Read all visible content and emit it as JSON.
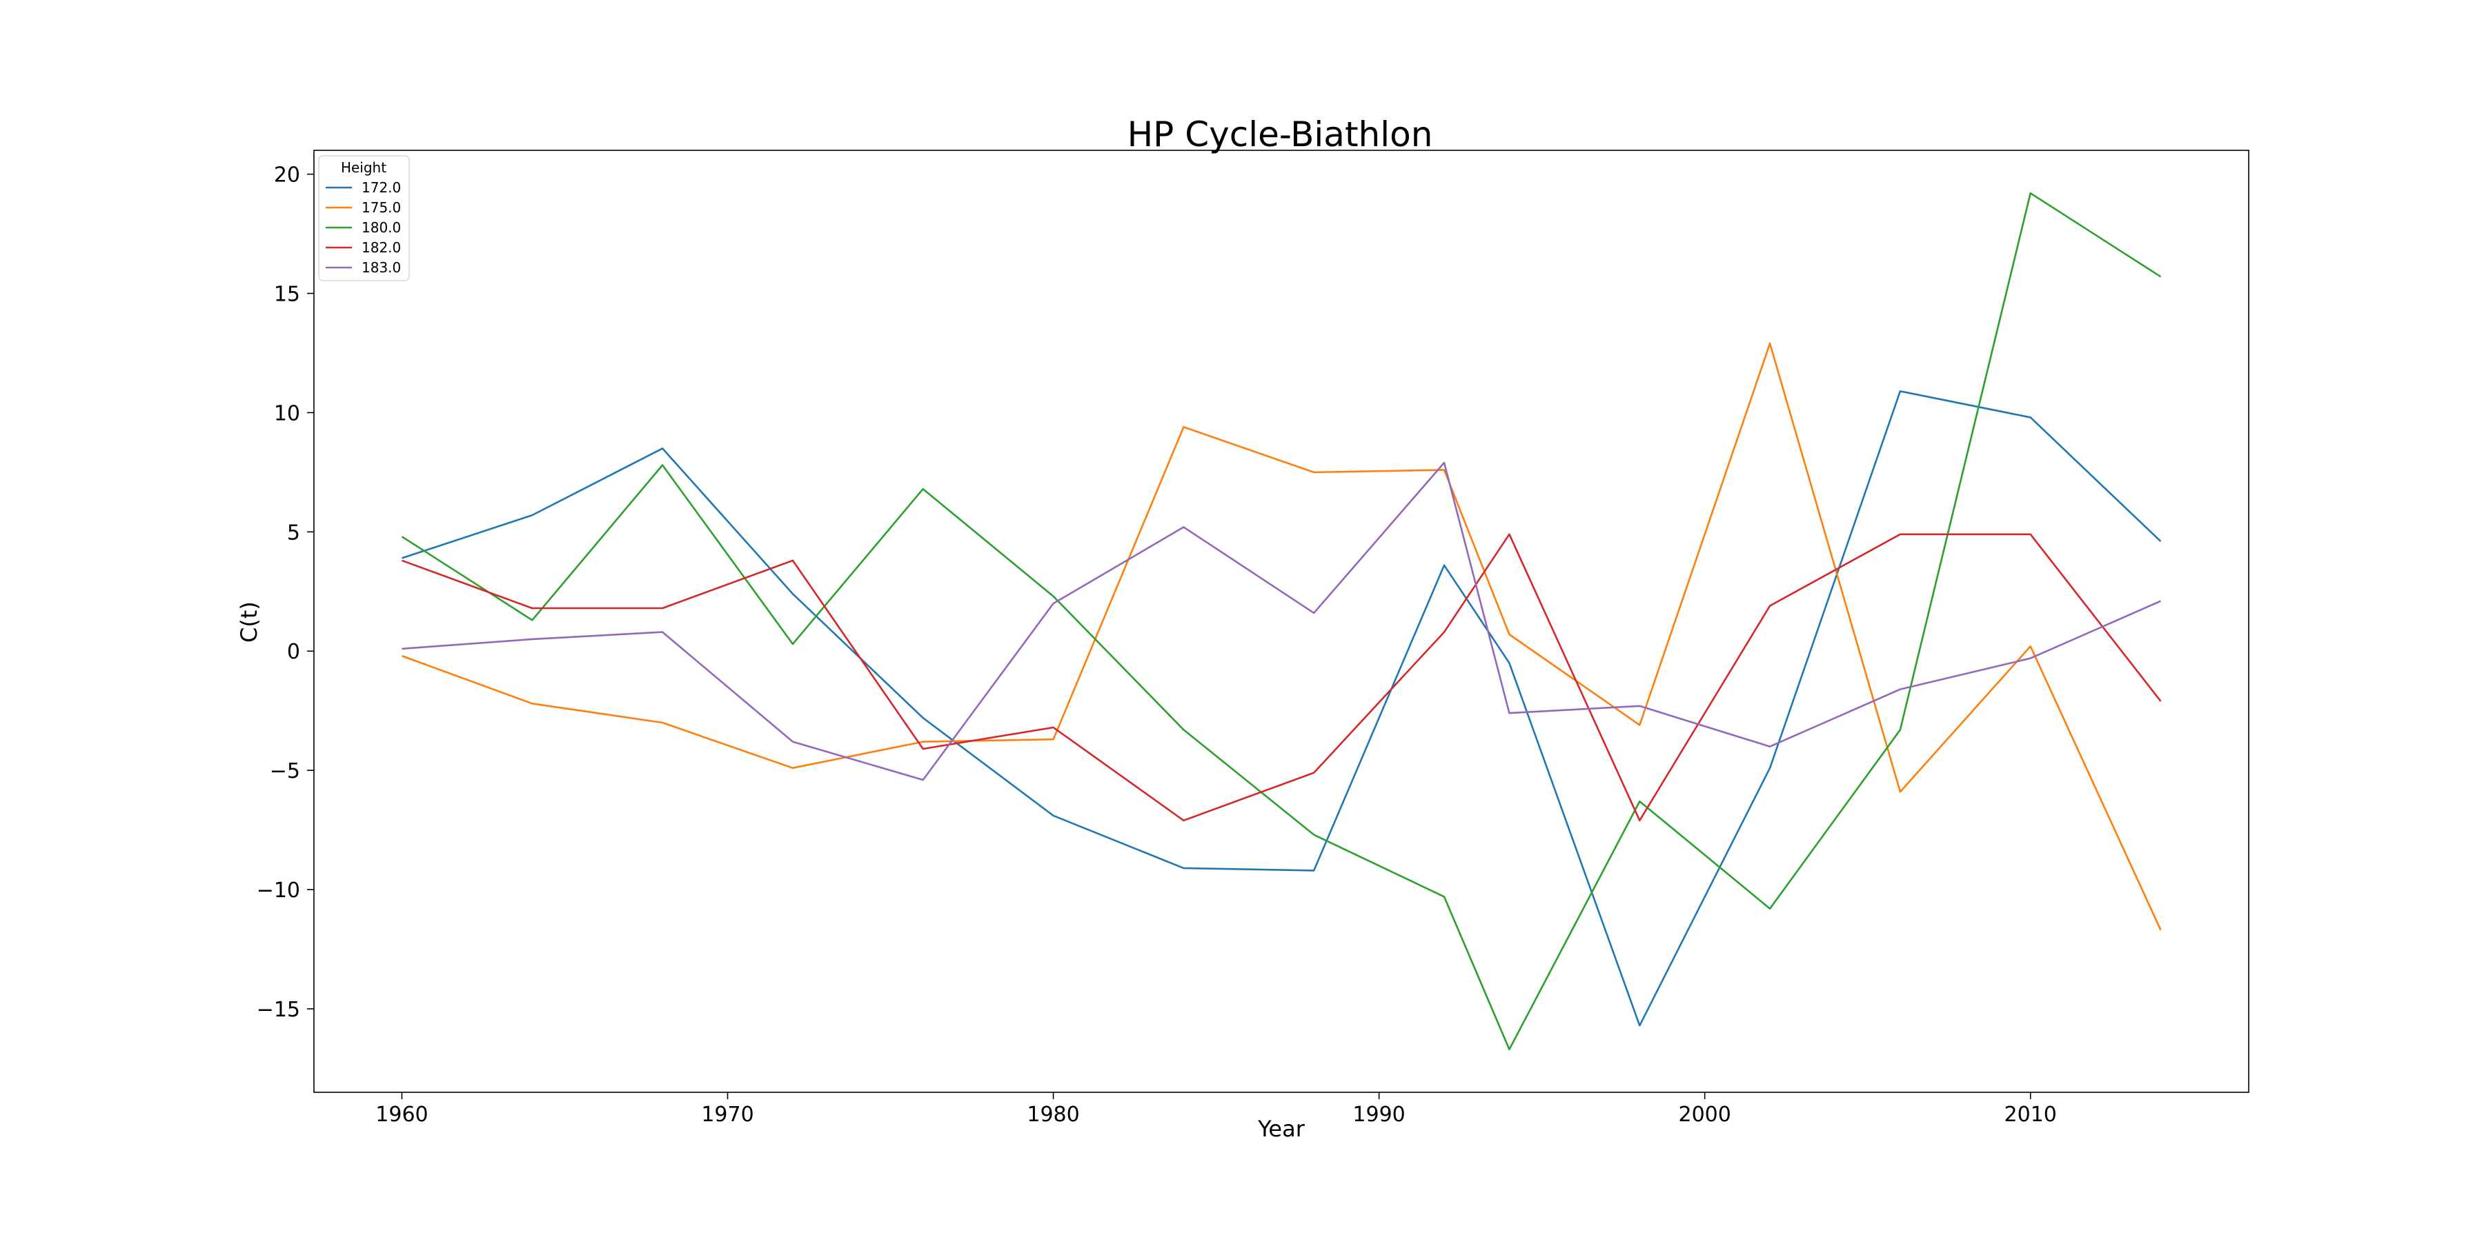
{
  "chart_data": {
    "type": "line",
    "title": "HP Cycle-Biathlon",
    "xlabel": "Year",
    "ylabel": "C(t)",
    "x": [
      1960,
      1964,
      1968,
      1972,
      1976,
      1980,
      1984,
      1988,
      1992,
      1994,
      1998,
      2002,
      2006,
      2010,
      2014
    ],
    "xlim": [
      1957.3,
      2016.7
    ],
    "ylim": [
      -18.5,
      21.0
    ],
    "xticks": [
      1960,
      1970,
      1980,
      1990,
      2000,
      2010
    ],
    "xtick_labels": [
      "1960",
      "1970",
      "1980",
      "1990",
      "2000",
      "2010"
    ],
    "yticks": [
      20,
      15,
      10,
      5,
      0,
      -5,
      -10,
      -15
    ],
    "ytick_labels": [
      "20",
      "15",
      "10",
      "5",
      "0",
      "−5",
      "−10",
      "−15"
    ],
    "grid": false,
    "legend": {
      "title": "Height",
      "placement": "top-left"
    },
    "series": [
      {
        "name": "172.0",
        "color": "#1f77b4",
        "values": [
          3.9,
          5.7,
          8.5,
          2.4,
          -2.8,
          -6.9,
          -9.1,
          -9.2,
          3.6,
          -0.5,
          -15.7,
          -4.9,
          10.9,
          9.8,
          4.6
        ]
      },
      {
        "name": "175.0",
        "color": "#ff7f0e",
        "values": [
          -0.2,
          -2.2,
          -3.0,
          -4.9,
          -3.8,
          -3.7,
          9.4,
          7.5,
          7.6,
          0.7,
          -3.1,
          12.9,
          -5.9,
          0.2,
          -11.7
        ]
      },
      {
        "name": "180.0",
        "color": "#2ca02c",
        "values": [
          4.8,
          1.3,
          7.8,
          0.3,
          6.8,
          2.3,
          -3.3,
          -7.7,
          -10.3,
          -16.7,
          -6.3,
          -10.8,
          -3.3,
          19.2,
          15.7
        ]
      },
      {
        "name": "182.0",
        "color": "#d62728",
        "values": [
          3.8,
          1.8,
          1.8,
          3.8,
          -4.1,
          -3.2,
          -7.1,
          -5.1,
          0.8,
          4.9,
          -7.1,
          1.9,
          4.9,
          4.9,
          -2.1
        ]
      },
      {
        "name": "183.0",
        "color": "#9467bd",
        "values": [
          0.1,
          0.5,
          0.8,
          -3.8,
          -5.4,
          2.0,
          5.2,
          1.6,
          7.9,
          -2.6,
          -2.3,
          -4.0,
          -1.6,
          -0.3,
          2.1
        ]
      }
    ]
  }
}
